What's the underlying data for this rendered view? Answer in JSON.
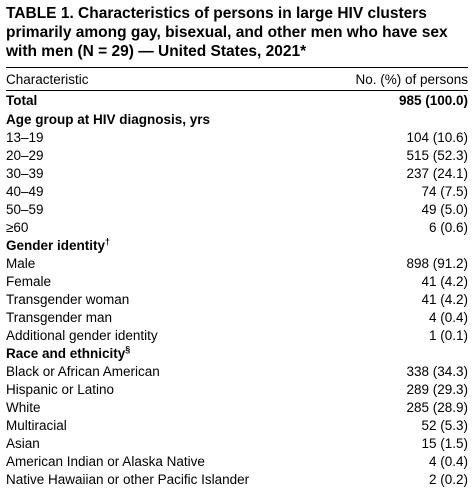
{
  "table": {
    "title": "TABLE 1. Characteristics of persons in large HIV clusters primarily among gay, bisexual, and other men who have sex with men (N = 29) — United States, 2021*",
    "headers": [
      "Characteristic",
      "No. (%) of persons"
    ],
    "total": {
      "label": "Total",
      "value": "985 (100.0)"
    },
    "sections": [
      {
        "label": "Age group at HIV diagnosis, yrs",
        "mark": "",
        "rows": [
          {
            "label": "13–19",
            "value": "104 (10.6)"
          },
          {
            "label": "20–29",
            "value": "515 (52.3)"
          },
          {
            "label": "30–39",
            "value": "237 (24.1)"
          },
          {
            "label": "40–49",
            "value": "74 (7.5)"
          },
          {
            "label": "50–59",
            "value": "49 (5.0)"
          },
          {
            "label": "≥60",
            "value": "6 (0.6)"
          }
        ]
      },
      {
        "label": "Gender identity",
        "mark": "†",
        "rows": [
          {
            "label": "Male",
            "value": "898 (91.2)"
          },
          {
            "label": "Female",
            "value": "41 (4.2)"
          },
          {
            "label": "Transgender woman",
            "value": "41 (4.2)"
          },
          {
            "label": "Transgender man",
            "value": "4 (0.4)"
          },
          {
            "label": "Additional gender identity",
            "value": "1 (0.1)"
          }
        ]
      },
      {
        "label": "Race and ethnicity",
        "mark": "§",
        "rows": [
          {
            "label": "Black or African American",
            "value": "338 (34.3)"
          },
          {
            "label": "Hispanic or Latino",
            "value": "289 (29.3)"
          },
          {
            "label": "White",
            "value": "285 (28.9)"
          },
          {
            "label": "Multiracial",
            "value": "52 (5.3)"
          },
          {
            "label": "Asian",
            "value": "15 (1.5)"
          },
          {
            "label": "American Indian or Alaska Native",
            "value": "4 (0.4)"
          },
          {
            "label": "Native Hawaiian or other Pacific Islander",
            "value": "2 (0.2)"
          }
        ]
      }
    ]
  }
}
